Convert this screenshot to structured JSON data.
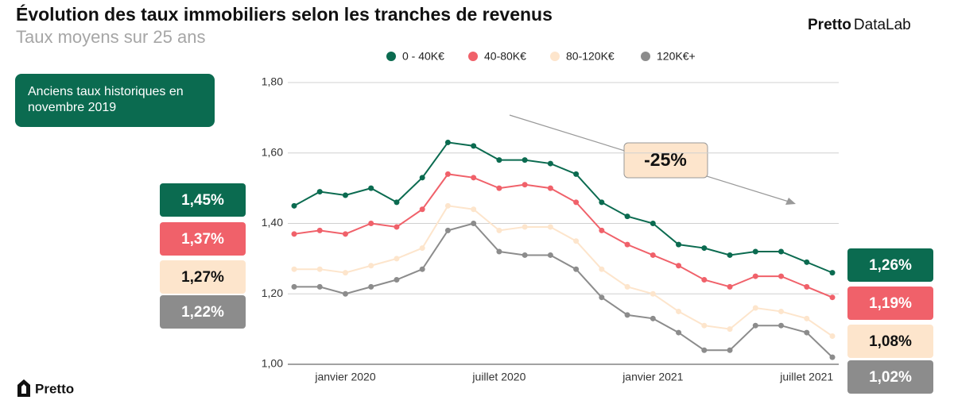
{
  "title": "Évolution des taux immobiliers selon les tranches de revenus",
  "subtitle": "Taux moyens sur 25 ans",
  "brand": {
    "bold": "Pretto",
    "regular": "DataLab"
  },
  "logo": "Pretto",
  "chart_data": {
    "type": "line",
    "categories": [
      null,
      null,
      "janvier 2020",
      null,
      null,
      null,
      null,
      null,
      "juillet 2020",
      null,
      null,
      null,
      null,
      null,
      "janvier 2021",
      null,
      null,
      null,
      null,
      null,
      "juillet 2021",
      null
    ],
    "ylim": [
      1.0,
      1.8
    ],
    "yticks": [
      {
        "value": 1.0,
        "label": "1,00"
      },
      {
        "value": 1.2,
        "label": "1,20"
      },
      {
        "value": 1.4,
        "label": "1,40"
      },
      {
        "value": 1.6,
        "label": "1,60"
      },
      {
        "value": 1.8,
        "label": "1,80"
      }
    ],
    "grid": true,
    "legend": "top",
    "series": [
      {
        "name": "0 - 40K€",
        "color": "#0b6b50",
        "text_color": "#ffffff",
        "values": [
          1.45,
          1.49,
          1.48,
          1.5,
          1.46,
          1.53,
          1.63,
          1.62,
          1.58,
          1.58,
          1.57,
          1.54,
          1.46,
          1.42,
          1.4,
          1.34,
          1.33,
          1.31,
          1.32,
          1.32,
          1.29,
          1.26
        ],
        "value_labels": [
          "1,45%",
          null,
          null,
          null,
          null,
          null,
          null,
          null,
          null,
          null,
          null,
          null,
          null,
          null,
          null,
          null,
          null,
          null,
          null,
          null,
          null,
          "1,26%"
        ]
      },
      {
        "name": "40-80K€",
        "color": "#f0616a",
        "text_color": "#ffffff",
        "values": [
          1.37,
          1.38,
          1.37,
          1.4,
          1.39,
          1.44,
          1.54,
          1.53,
          1.5,
          1.51,
          1.5,
          1.46,
          1.38,
          1.34,
          1.31,
          1.28,
          1.24,
          1.22,
          1.25,
          1.25,
          1.22,
          1.19
        ],
        "value_labels": [
          "1,37%",
          null,
          null,
          null,
          null,
          null,
          null,
          null,
          null,
          null,
          null,
          null,
          null,
          null,
          null,
          null,
          null,
          null,
          null,
          null,
          null,
          "1,19%"
        ]
      },
      {
        "name": "80-120K€",
        "color": "#fde5cc",
        "text_color": "#111111",
        "values": [
          1.27,
          1.27,
          1.26,
          1.28,
          1.3,
          1.33,
          1.45,
          1.44,
          1.38,
          1.39,
          1.39,
          1.35,
          1.27,
          1.22,
          1.2,
          1.15,
          1.11,
          1.1,
          1.16,
          1.15,
          1.13,
          1.08
        ],
        "value_labels": [
          "1,27%",
          null,
          null,
          null,
          null,
          null,
          null,
          null,
          null,
          null,
          null,
          null,
          null,
          null,
          null,
          null,
          null,
          null,
          null,
          null,
          null,
          "1,08%"
        ]
      },
      {
        "name": "120K€+",
        "color": "#8c8c8c",
        "text_color": "#ffffff",
        "values": [
          1.22,
          1.22,
          1.2,
          1.22,
          1.24,
          1.27,
          1.38,
          1.4,
          1.32,
          1.31,
          1.31,
          1.27,
          1.19,
          1.14,
          1.13,
          1.09,
          1.04,
          1.04,
          1.11,
          1.11,
          1.09,
          1.02
        ],
        "value_labels": [
          "1,22%",
          null,
          null,
          null,
          null,
          null,
          null,
          null,
          null,
          null,
          null,
          null,
          null,
          null,
          null,
          null,
          null,
          null,
          null,
          null,
          null,
          "1,02%"
        ]
      }
    ],
    "annotations": {
      "note": "Anciens taux historiques en novembre 2019",
      "change": "-25%"
    }
  }
}
